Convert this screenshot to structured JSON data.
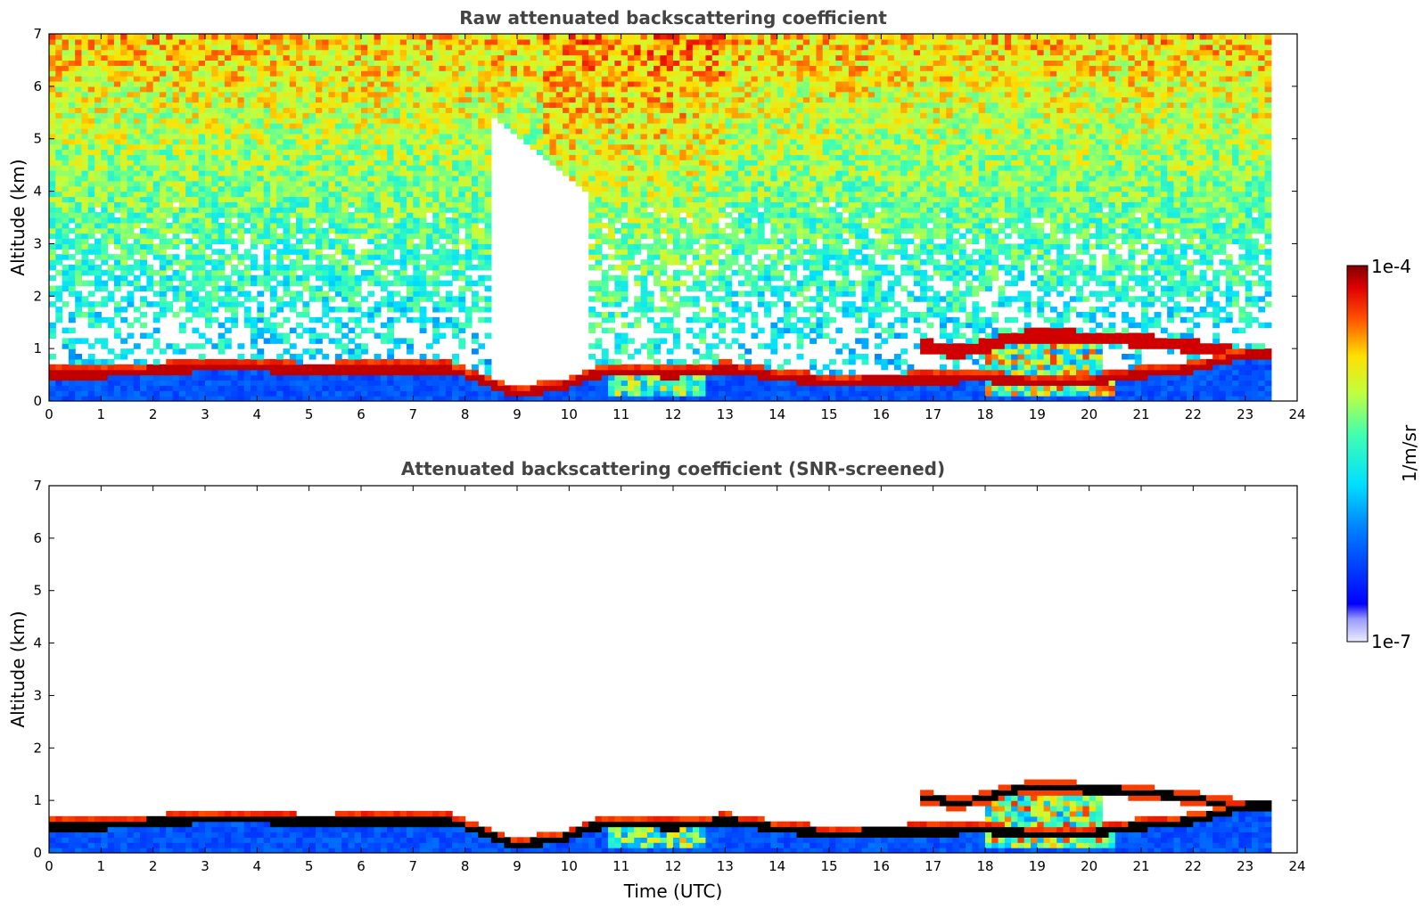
{
  "chart_data": [
    {
      "type": "heatmap",
      "title": "Raw attenuated backscattering coefficient",
      "xlabel": "",
      "ylabel": "Altitude (km)",
      "xlim": [
        0,
        24
      ],
      "ylim": [
        0,
        7
      ],
      "xticks": [
        "0",
        "1",
        "2",
        "3",
        "4",
        "5",
        "6",
        "7",
        "8",
        "9",
        "10",
        "11",
        "12",
        "13",
        "14",
        "15",
        "16",
        "17",
        "18",
        "19",
        "20",
        "21",
        "22",
        "23",
        "24"
      ],
      "yticks": [
        "0",
        "1",
        "2",
        "3",
        "4",
        "5",
        "6",
        "7"
      ],
      "data_end_time": 23.5,
      "screened": false,
      "layers": [
        {
          "kind": "boundary-layer-top",
          "points": [
            [
              0,
              0.5
            ],
            [
              1,
              0.5
            ],
            [
              2,
              0.58
            ],
            [
              3,
              0.62
            ],
            [
              4,
              0.62
            ],
            [
              5,
              0.58
            ],
            [
              6,
              0.6
            ],
            [
              7,
              0.6
            ],
            [
              7.7,
              0.6
            ],
            [
              8.5,
              0.3
            ],
            [
              9,
              0.12
            ],
            [
              10,
              0.3
            ],
            [
              10.5,
              0.5
            ],
            [
              11,
              0.55
            ],
            [
              12,
              0.5
            ],
            [
              13,
              0.6
            ],
            [
              14,
              0.45
            ],
            [
              15,
              0.35
            ],
            [
              16,
              0.38
            ],
            [
              17,
              0.4
            ],
            [
              18,
              0.42
            ],
            [
              19,
              0.35
            ],
            [
              20,
              0.35
            ],
            [
              21,
              0.5
            ],
            [
              22,
              0.6
            ],
            [
              23,
              0.88
            ],
            [
              23.5,
              0.88
            ]
          ]
        },
        {
          "kind": "cloud-layer",
          "points": [
            [
              16.8,
              1.05
            ],
            [
              17.5,
              0.95
            ],
            [
              18,
              1.05
            ],
            [
              18.5,
              1.2
            ],
            [
              19,
              1.25
            ],
            [
              19.5,
              1.25
            ],
            [
              20,
              1.2
            ],
            [
              20.5,
              1.2
            ],
            [
              21,
              1.15
            ],
            [
              21.5,
              1.1
            ],
            [
              22,
              1.05
            ],
            [
              22.5,
              0.95
            ],
            [
              23,
              0.9
            ],
            [
              23.5,
              0.88
            ]
          ]
        }
      ]
    },
    {
      "type": "heatmap",
      "title": "Attenuated backscattering coefficient (SNR-screened)",
      "xlabel": "Time (UTC)",
      "ylabel": "Altitude (km)",
      "xlim": [
        0,
        24
      ],
      "ylim": [
        0,
        7
      ],
      "xticks": [
        "0",
        "1",
        "2",
        "3",
        "4",
        "5",
        "6",
        "7",
        "8",
        "9",
        "10",
        "11",
        "12",
        "13",
        "14",
        "15",
        "16",
        "17",
        "18",
        "19",
        "20",
        "21",
        "22",
        "23",
        "24"
      ],
      "yticks": [
        "0",
        "1",
        "2",
        "3",
        "4",
        "5",
        "6",
        "7"
      ],
      "data_end_time": 23.5,
      "screened": true,
      "layers": [
        {
          "kind": "boundary-layer-top",
          "points": [
            [
              0,
              0.5
            ],
            [
              1,
              0.5
            ],
            [
              2,
              0.58
            ],
            [
              3,
              0.62
            ],
            [
              4,
              0.62
            ],
            [
              5,
              0.58
            ],
            [
              6,
              0.6
            ],
            [
              7,
              0.6
            ],
            [
              7.7,
              0.6
            ],
            [
              8.5,
              0.3
            ],
            [
              9,
              0.12
            ],
            [
              10,
              0.3
            ],
            [
              10.5,
              0.5
            ],
            [
              11,
              0.55
            ],
            [
              12,
              0.5
            ],
            [
              13,
              0.6
            ],
            [
              14,
              0.45
            ],
            [
              15,
              0.35
            ],
            [
              16,
              0.38
            ],
            [
              17,
              0.4
            ],
            [
              18,
              0.42
            ],
            [
              19,
              0.35
            ],
            [
              20,
              0.35
            ],
            [
              21,
              0.5
            ],
            [
              22,
              0.6
            ],
            [
              23,
              0.88
            ],
            [
              23.5,
              0.88
            ]
          ]
        },
        {
          "kind": "cloud-layer",
          "points": [
            [
              16.8,
              1.05
            ],
            [
              17.5,
              0.95
            ],
            [
              18,
              1.05
            ],
            [
              18.5,
              1.2
            ],
            [
              19,
              1.25
            ],
            [
              19.5,
              1.25
            ],
            [
              20,
              1.2
            ],
            [
              20.5,
              1.2
            ],
            [
              21,
              1.15
            ],
            [
              21.5,
              1.1
            ],
            [
              22,
              1.05
            ],
            [
              22.5,
              0.95
            ],
            [
              23,
              0.9
            ],
            [
              23.5,
              0.88
            ]
          ]
        }
      ]
    }
  ],
  "colorbar": {
    "max_label": "1e-4",
    "min_label": "1e-7",
    "unit_label": "1/m/sr",
    "colormap": "jet",
    "scale": "log"
  }
}
